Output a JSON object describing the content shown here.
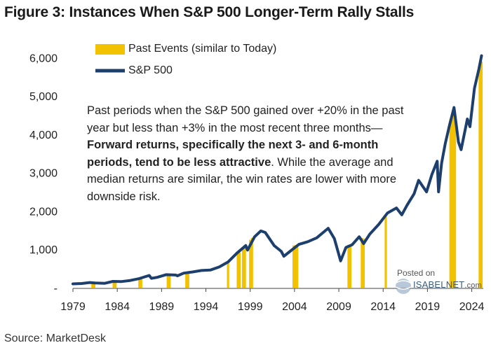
{
  "title": "Figure 3: Instances When S&P 500 Longer-Term Rally Stalls",
  "source": "Source: MarketDesk",
  "watermark": {
    "posted_on": "Posted on",
    "brand": "ISABELNET",
    "suffix": ".com"
  },
  "annotation": {
    "part1": "Past periods when the S&P 500 gained over +20% in the past year but less than +3% in the most recent three months—",
    "bold": "Forward returns, specifically the next 3- and 6-month periods, tend to be less attractive",
    "part2": ". While the average and median returns are similar, the win rates are lower with more downside risk."
  },
  "colors": {
    "line": "#1d3f6e",
    "bars": "#f2c200",
    "title": "#1a1a1a"
  },
  "chart_data": {
    "type": "line",
    "title": "Figure 3: Instances When S&P 500 Longer-Term Rally Stalls",
    "xlabel": "",
    "ylabel": "",
    "xlim": [
      1979,
      2025.3
    ],
    "ylim": [
      0,
      6500
    ],
    "y_ticks": [
      0,
      1000,
      2000,
      3000,
      4000,
      5000,
      6000
    ],
    "y_tick_labels": [
      "-",
      "1,000",
      "2,000",
      "3,000",
      "4,000",
      "5,000",
      "6,000"
    ],
    "x_ticks": [
      1979,
      1984,
      1989,
      1994,
      1999,
      2004,
      2009,
      2014,
      2019,
      2024
    ],
    "x_tick_labels": [
      "1979",
      "1984",
      "1989",
      "1994",
      "1999",
      "2004",
      "2009",
      "2014",
      "2019",
      "2024"
    ],
    "legend": [
      {
        "label": "Past Events (similar to Today)",
        "kind": "bar"
      },
      {
        "label": "S&P 500",
        "kind": "line"
      }
    ],
    "series": [
      {
        "name": "S&P 500",
        "kind": "line",
        "x": [
          1979.0,
          1980.0,
          1980.9,
          1981.5,
          1982.6,
          1983.5,
          1984.5,
          1985.5,
          1986.5,
          1987.6,
          1987.85,
          1988.5,
          1989.5,
          1990.6,
          1990.8,
          1991.5,
          1992.5,
          1993.5,
          1994.5,
          1995.5,
          1996.5,
          1997.5,
          1998.5,
          1998.7,
          1999.5,
          2000.2,
          2000.7,
          2001.7,
          2002.5,
          2002.8,
          2003.5,
          2004.5,
          2005.5,
          2006.5,
          2007.8,
          2008.5,
          2009.2,
          2009.8,
          2010.5,
          2011.3,
          2011.8,
          2012.5,
          2013.5,
          2014.5,
          2015.5,
          2016.1,
          2016.7,
          2017.5,
          2018.0,
          2018.9,
          2019.5,
          2020.1,
          2020.25,
          2020.6,
          2021.0,
          2021.5,
          2022.0,
          2022.5,
          2022.8,
          2023.5,
          2023.8,
          2024.3,
          2024.8,
          2025.1
        ],
        "values": [
          100,
          110,
          135,
          125,
          115,
          165,
          160,
          190,
          240,
          320,
          245,
          270,
          340,
          330,
          310,
          380,
          410,
          450,
          460,
          540,
          670,
          900,
          1100,
          980,
          1330,
          1480,
          1440,
          1100,
          950,
          820,
          950,
          1130,
          1200,
          1300,
          1550,
          1280,
          700,
          1050,
          1120,
          1330,
          1150,
          1400,
          1650,
          1950,
          2080,
          1900,
          2150,
          2450,
          2800,
          2500,
          2950,
          3300,
          2500,
          3250,
          3750,
          4250,
          4700,
          3800,
          3600,
          4400,
          4200,
          5200,
          5700,
          6050
        ]
      },
      {
        "name": "Past Events (similar to Today)",
        "kind": "bar",
        "x": [
          1981.2,
          1981.4,
          1983.6,
          1983.8,
          1986.5,
          1986.7,
          1989.7,
          1989.9,
          1991.8,
          1992.0,
          1996.5,
          1997.6,
          1997.8,
          1998.2,
          1998.4,
          1999.0,
          1999.2,
          2003.9,
          2004.1,
          2004.3,
          2010.1,
          2010.3,
          2011.6,
          2011.8,
          2014.3,
          2021.6,
          2021.8,
          2022.0,
          2022.1,
          2024.9,
          2025.1
        ],
        "values": [
          130,
          130,
          170,
          170,
          240,
          240,
          350,
          350,
          390,
          390,
          640,
          900,
          920,
          1000,
          1050,
          1250,
          1300,
          1100,
          1110,
          1120,
          1120,
          1130,
          1300,
          1280,
          1850,
          4400,
          4450,
          4650,
          4500,
          5800,
          5900
        ]
      }
    ]
  }
}
